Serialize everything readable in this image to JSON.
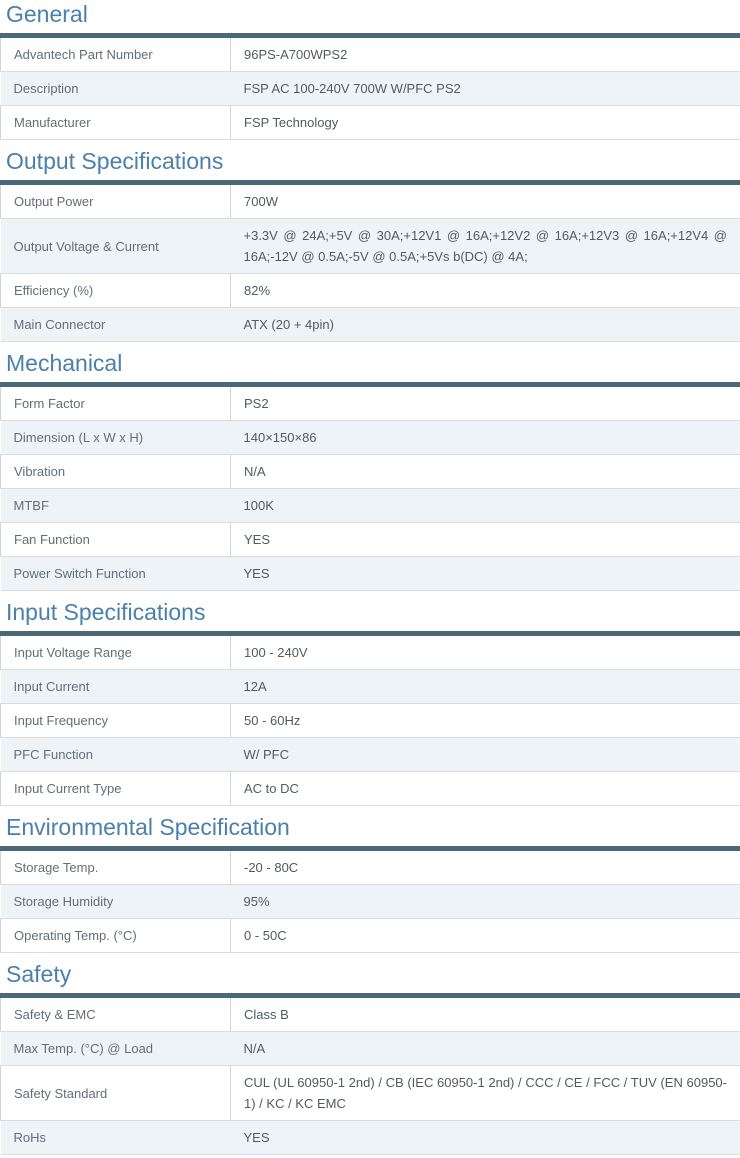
{
  "theme": {
    "heading_color": "#4a80ab",
    "bar_color": "#4a687a",
    "row_alt_bg": "#eef3f8",
    "label_color": "#636e78",
    "value_color": "#525a61",
    "row_border": "#d9dde1",
    "divider": "#d0d5d9",
    "page_bg": "#ffffff"
  },
  "sections": [
    {
      "title": "General",
      "rows": [
        {
          "label": "Advantech Part Number",
          "value": "96PS-A700WPS2"
        },
        {
          "label": "Description",
          "value": "FSP AC 100-240V 700W W/PFC PS2"
        },
        {
          "label": "Manufacturer",
          "value": "FSP Technology"
        }
      ]
    },
    {
      "title": "Output Specifications",
      "rows": [
        {
          "label": "Output Power",
          "value": "700W"
        },
        {
          "label": "Output Voltage & Current",
          "value": "+3.3V @ 24A;+5V @ 30A;+12V1 @ 16A;+12V2 @ 16A;+12V3 @ 16A;+12V4 @ 16A;-12V @ 0.5A;-5V @ 0.5A;+5Vs b(DC) @ 4A;"
        },
        {
          "label": "Efficiency (%)",
          "value": "82%"
        },
        {
          "label": "Main Connector",
          "value": "ATX (20 + 4pin)"
        }
      ]
    },
    {
      "title": "Mechanical",
      "rows": [
        {
          "label": "Form Factor",
          "value": "PS2"
        },
        {
          "label": "Dimension (L x W x H)",
          "value": "140×150×86"
        },
        {
          "label": "Vibration",
          "value": "N/A"
        },
        {
          "label": "MTBF",
          "value": "100K"
        },
        {
          "label": "Fan Function",
          "value": "YES"
        },
        {
          "label": "Power Switch Function",
          "value": "YES"
        }
      ]
    },
    {
      "title": "Input Specifications",
      "rows": [
        {
          "label": "Input Voltage Range",
          "value": "100 - 240V"
        },
        {
          "label": "Input Current",
          "value": "12A"
        },
        {
          "label": "Input Frequency",
          "value": "50 - 60Hz"
        },
        {
          "label": "PFC Function",
          "value": "W/ PFC"
        },
        {
          "label": "Input Current Type",
          "value": "AC to DC"
        }
      ]
    },
    {
      "title": "Environmental Specification",
      "rows": [
        {
          "label": "Storage Temp.",
          "value": "-20 - 80C"
        },
        {
          "label": "Storage Humidity",
          "value": "95%"
        },
        {
          "label": "Operating Temp. (°C)",
          "value": "0 - 50C"
        }
      ]
    },
    {
      "title": "Safety",
      "rows": [
        {
          "label": "Safety & EMC",
          "value": "Class B"
        },
        {
          "label": "Max Temp. (°C) @ Load",
          "value": "N/A"
        },
        {
          "label": "Safety Standard",
          "value": "CUL (UL 60950-1 2nd) / CB (IEC 60950-1 2nd) / CCC / CE / FCC / TUV (EN 60950-1) / KC / KC EMC"
        },
        {
          "label": "RoHs",
          "value": "YES"
        }
      ]
    }
  ]
}
